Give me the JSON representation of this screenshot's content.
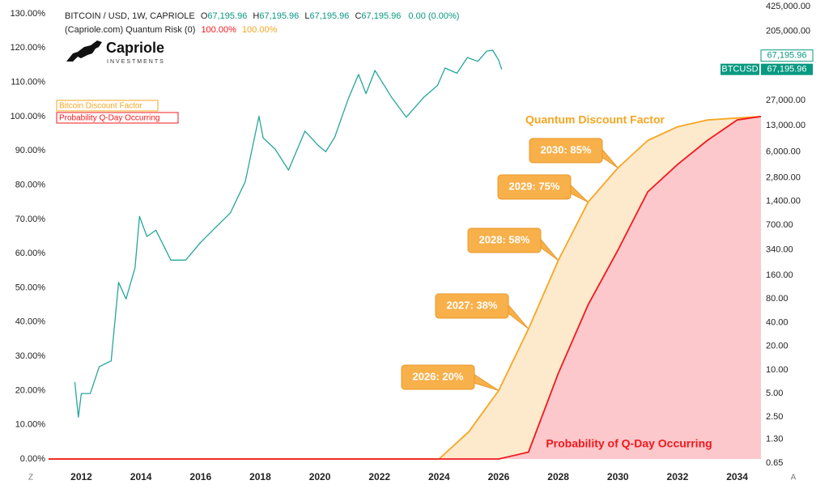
{
  "chart_data": {
    "type": "line",
    "logo": {
      "name": "Capriole",
      "tagline": "INVESTMENTS"
    },
    "ohlc": [
      "O",
      "67,195.96",
      "H",
      "67,195.96",
      "L",
      "67,195.96",
      "C",
      "67,195.96"
    ],
    "change": "0.00 (0.00%)",
    "indicator": "(Capriole.com) Quantum Risk (0)",
    "indicator_values": [
      "100.00%",
      "100.00%"
    ],
    "price_tag": {
      "value": 67195.96,
      "label": "67,195.96",
      "symbol": "BTCUSD"
    },
    "marker_tag": "67,195.96",
    "corner_left": "Z",
    "corner_right": "A",
    "annotations": [
      "Quantum Discount Factor",
      "Probability of Q-Day Occurring"
    ],
    "callouts": [
      "2026: 20%",
      "2027: 38%",
      "2028: 58%",
      "2029: 75%",
      "2030: 85%"
    ],
    "xlim": [
      2010.9,
      2034.8
    ],
    "xticks": [
      2012,
      2014,
      2016,
      2018,
      2020,
      2022,
      2024,
      2026,
      2028,
      2030,
      2032,
      2034
    ],
    "ylim": [
      0,
      130
    ],
    "yticks": [
      {
        "value": 0,
        "label": "0.00%"
      },
      {
        "value": 10,
        "label": "10.00%"
      },
      {
        "value": 20,
        "label": "20.00%"
      },
      {
        "value": 30,
        "label": "30.00%"
      },
      {
        "value": 40,
        "label": "40.00%"
      },
      {
        "value": 50,
        "label": "50.00%"
      },
      {
        "value": 60,
        "label": "60.00%"
      },
      {
        "value": 70,
        "label": "70.00%"
      },
      {
        "value": 80,
        "label": "80.00%"
      },
      {
        "value": 90,
        "label": "90.00%"
      },
      {
        "value": 100,
        "label": "100.00%"
      },
      {
        "value": 110,
        "label": "110.00%"
      },
      {
        "value": 120,
        "label": "120.00%"
      },
      {
        "value": 130,
        "label": "130.00%"
      }
    ],
    "y2lim": [
      0.65,
      425000
    ],
    "y2_log": true,
    "y2ticks": [
      0.65,
      {
        "value": 1.3,
        "label": "1.30"
      },
      {
        "value": 2.5,
        "label": "2.50"
      },
      {
        "value": 5,
        "label": "5.00"
      },
      {
        "value": 10,
        "label": "10.00"
      },
      {
        "value": 20,
        "label": "20.00"
      },
      {
        "value": 40,
        "label": "40.00"
      },
      {
        "value": 80,
        "label": "80.00"
      },
      {
        "value": 160,
        "label": "160.00"
      },
      {
        "value": 340,
        "label": "340.00"
      },
      {
        "value": 700,
        "label": "700.00"
      },
      {
        "value": 1400,
        "label": "1,400.00"
      },
      {
        "value": 2800,
        "label": "2,800.00"
      },
      {
        "value": 6000,
        "label": "6,000.00"
      },
      {
        "value": 13000,
        "label": "13,000.00"
      },
      {
        "value": 27000,
        "label": "27,000.00"
      },
      {
        "value": 205000,
        "label": "205,000.00"
      },
      {
        "value": 425000,
        "label": "425,000.00"
      }
    ],
    "grid": false,
    "series": [
      {
        "name": "BITCOIN / USD, 1W, CAPRIOLE",
        "color": "#26a69a",
        "axis": "y2",
        "x": [
          2011.78,
          2011.9,
          2012.0,
          2012.3,
          2012.6,
          2013.0,
          2013.25,
          2013.5,
          2013.8,
          2013.95,
          2014.2,
          2014.5,
          2015.0,
          2015.5,
          2016.0,
          2016.5,
          2017.0,
          2017.5,
          2017.96,
          2018.1,
          2018.5,
          2018.95,
          2019.5,
          2019.95,
          2020.2,
          2020.5,
          2020.95,
          2021.3,
          2021.55,
          2021.85,
          2022.4,
          2022.9,
          2023.5,
          2023.95,
          2024.2,
          2024.6,
          2024.95,
          2025.3,
          2025.6,
          2025.8,
          2026.0,
          2026.1
        ],
        "values": [
          7,
          2.5,
          5,
          5,
          11,
          13,
          130,
          80,
          200,
          900,
          500,
          600,
          250,
          250,
          420,
          650,
          1000,
          2500,
          17000,
          9000,
          6500,
          3500,
          11000,
          7200,
          6000,
          9200,
          28000,
          58000,
          33000,
          65000,
          30000,
          16500,
          30000,
          42000,
          70000,
          60000,
          95000,
          85000,
          115000,
          118000,
          88000,
          67195.96
        ]
      },
      {
        "name": "Bitcoin Discount Factor",
        "color": "#f5a623",
        "fill": "#fde9cc",
        "x": [
          2010.9,
          2024.0,
          2025.0,
          2026.0,
          2027.0,
          2028.0,
          2029.0,
          2030.0,
          2031.0,
          2032.0,
          2033.0,
          2034.8
        ],
        "values": [
          0,
          0,
          8,
          20,
          38,
          58,
          75,
          85,
          93,
          97,
          99,
          100
        ]
      },
      {
        "name": "Probability Q-Day Occurring",
        "color": "#f0191e",
        "fill": "#fdc8cb",
        "x": [
          2010.9,
          2026.0,
          2027.0,
          2028.0,
          2029.0,
          2030.0,
          2031.0,
          2032.0,
          2033.0,
          2034.0,
          2034.8
        ],
        "values": [
          0,
          0,
          2,
          25,
          45,
          61,
          78,
          86,
          93,
          99,
          100
        ]
      }
    ]
  }
}
